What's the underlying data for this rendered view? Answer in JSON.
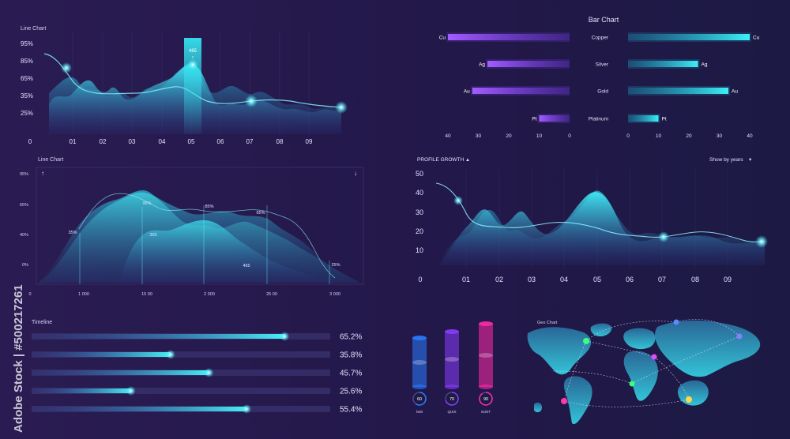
{
  "watermark": {
    "text": "Adobe Stock | #500217261"
  },
  "panel1": {
    "title": "Line Chart",
    "chart_data": {
      "type": "area",
      "title": "Line Chart",
      "y_tick_labels": [
        "95%",
        "85%",
        "65%",
        "35%",
        "25%"
      ],
      "x_tick_labels": [
        "0",
        "01",
        "02",
        "03",
        "04",
        "05",
        "06",
        "07",
        "08",
        "09"
      ],
      "highlight": {
        "category": "05",
        "value_label": "465"
      }
    }
  },
  "panel2": {
    "title": "Line Chart",
    "chart_data": {
      "type": "area",
      "title": "Line Chart",
      "y_tick_labels": [
        "95%",
        "65%",
        "40%",
        "0%"
      ],
      "x_tick_labels": [
        "0",
        "1 000",
        "15 00",
        "2 000",
        "25 00",
        "3 000"
      ],
      "annotations": [
        "35%",
        "95%",
        "365",
        "85%",
        "65%",
        "465",
        "25%"
      ]
    }
  },
  "bar_chart": {
    "title": "Bar Chart",
    "chart_data": {
      "type": "bar",
      "title": "Bar Chart",
      "categories": [
        "Copper",
        "Silver",
        "Gold",
        "Platinum"
      ],
      "symbols": [
        "Cu",
        "Ag",
        "Au",
        "Pt"
      ],
      "series": [
        {
          "values": [
            40,
            27,
            32,
            10
          ]
        },
        {
          "values": [
            40,
            23,
            33,
            10
          ]
        }
      ],
      "left_axis_ticks": [
        "40",
        "30",
        "20",
        "10",
        "0"
      ],
      "right_axis_ticks": [
        "0",
        "10",
        "20",
        "30",
        "40"
      ],
      "xlim": [
        0,
        40
      ]
    }
  },
  "profile": {
    "title": "PROFILE GROWTH",
    "title_arrow": "▲",
    "dropdown": "Show by years",
    "dropdown_arrow": "▾",
    "chart_data": {
      "type": "area",
      "y_tick_labels": [
        "50",
        "40",
        "30",
        "20",
        "10"
      ],
      "x_tick_labels": [
        "0",
        "01",
        "02",
        "03",
        "04",
        "05",
        "06",
        "07",
        "08",
        "09"
      ],
      "ylim": [
        0,
        50
      ]
    }
  },
  "timeline": {
    "title": "Timeline",
    "chart_data": {
      "type": "bar",
      "orientation": "horizontal",
      "values": [
        65.2,
        35.8,
        45.7,
        25.6,
        55.4
      ],
      "labels": [
        "65.2%",
        "35.8%",
        "45.7%",
        "25.6%",
        "55.4%"
      ]
    }
  },
  "cylinders": {
    "chart_data": {
      "type": "bar",
      "categories": [
        "NISI",
        "QUIS",
        "SUNT"
      ],
      "values": [
        60,
        70,
        90
      ],
      "colors": [
        "#2a7bff",
        "#8a3cff",
        "#ff2aa8"
      ]
    }
  },
  "geo": {
    "title": "Geo Chart"
  }
}
